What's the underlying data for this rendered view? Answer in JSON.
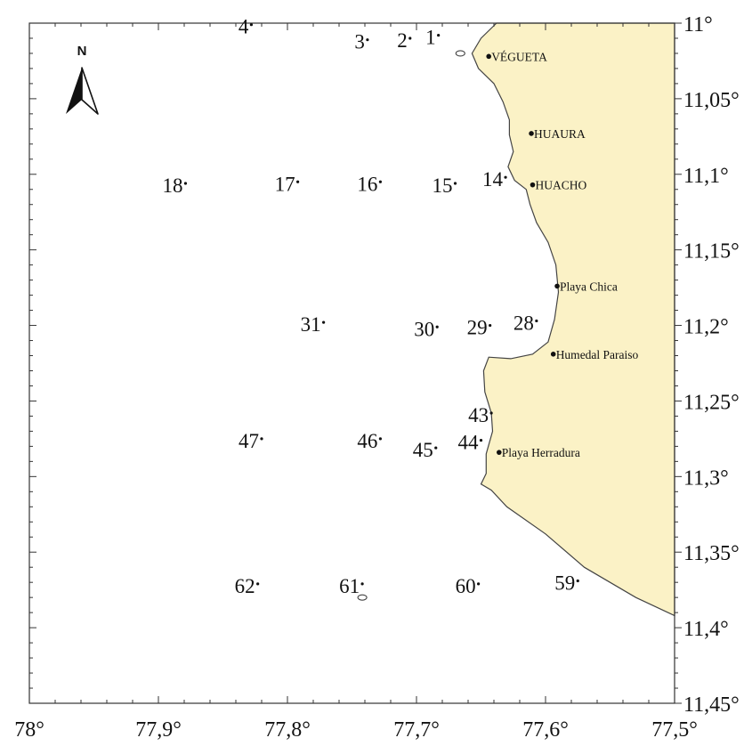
{
  "map": {
    "north_label": "N",
    "colors": {
      "land": "#fbf2c6",
      "coast": "#444444",
      "frame": "#333333",
      "text": "#111111"
    },
    "lon_ticks": [
      {
        "value": 78.0,
        "label": "78°"
      },
      {
        "value": 77.9,
        "label": "77,9°"
      },
      {
        "value": 77.8,
        "label": "77,8°"
      },
      {
        "value": 77.7,
        "label": "77,7°"
      },
      {
        "value": 77.6,
        "label": "77,6°"
      },
      {
        "value": 77.5,
        "label": "77,5°"
      }
    ],
    "lat_ticks": [
      {
        "value": 11.0,
        "label": "11°"
      },
      {
        "value": 11.05,
        "label": "11,05°"
      },
      {
        "value": 11.1,
        "label": "11,1°"
      },
      {
        "value": 11.15,
        "label": "11,15°"
      },
      {
        "value": 11.2,
        "label": "11,2°"
      },
      {
        "value": 11.25,
        "label": "11,25°"
      },
      {
        "value": 11.3,
        "label": "11,3°"
      },
      {
        "value": 11.35,
        "label": "11,35°"
      },
      {
        "value": 11.4,
        "label": "11,4°"
      },
      {
        "value": 11.45,
        "label": "11,45°"
      }
    ],
    "stations": [
      {
        "label": "4",
        "lon": 77.828,
        "lat": 11.001
      },
      {
        "label": "3",
        "lon": 77.738,
        "lat": 11.011
      },
      {
        "label": "2",
        "lon": 77.705,
        "lat": 11.01
      },
      {
        "label": "1",
        "lon": 77.683,
        "lat": 11.008
      },
      {
        "label": "18",
        "lon": 77.879,
        "lat": 11.106
      },
      {
        "label": "17",
        "lon": 77.792,
        "lat": 11.105
      },
      {
        "label": "16",
        "lon": 77.728,
        "lat": 11.105
      },
      {
        "label": "15",
        "lon": 77.67,
        "lat": 11.106
      },
      {
        "label": "14",
        "lon": 77.631,
        "lat": 11.102
      },
      {
        "label": "31",
        "lon": 77.772,
        "lat": 11.198
      },
      {
        "label": "30",
        "lon": 77.684,
        "lat": 11.201
      },
      {
        "label": "29",
        "lon": 77.643,
        "lat": 11.2
      },
      {
        "label": "28",
        "lon": 77.607,
        "lat": 11.197
      },
      {
        "label": "43",
        "lon": 77.642,
        "lat": 11.258
      },
      {
        "label": "47",
        "lon": 77.82,
        "lat": 11.275
      },
      {
        "label": "46",
        "lon": 77.728,
        "lat": 11.275
      },
      {
        "label": "45",
        "lon": 77.685,
        "lat": 11.281
      },
      {
        "label": "44",
        "lon": 77.65,
        "lat": 11.276
      },
      {
        "label": "62",
        "lon": 77.823,
        "lat": 11.371
      },
      {
        "label": "61",
        "lon": 77.742,
        "lat": 11.371
      },
      {
        "label": "60",
        "lon": 77.652,
        "lat": 11.371
      },
      {
        "label": "59",
        "lon": 77.575,
        "lat": 11.369
      }
    ],
    "towns": [
      {
        "name": "VÉGUETA",
        "lon": 77.644,
        "lat": 11.022
      },
      {
        "name": "HUAURA",
        "lon": 77.611,
        "lat": 11.073
      },
      {
        "name": "HUACHO",
        "lon": 77.61,
        "lat": 11.107
      },
      {
        "name": "Playa Chica",
        "lon": 77.591,
        "lat": 11.174
      },
      {
        "name": "Humedal Paraiso",
        "lon": 77.594,
        "lat": 11.219
      },
      {
        "name": "Playa Herradura",
        "lon": 77.636,
        "lat": 11.284
      }
    ],
    "coastline": [
      [
        77.638,
        11.0
      ],
      [
        77.65,
        11.01
      ],
      [
        77.657,
        11.02
      ],
      [
        77.652,
        11.03
      ],
      [
        77.64,
        11.04
      ],
      [
        77.633,
        11.052
      ],
      [
        77.628,
        11.064
      ],
      [
        77.628,
        11.074
      ],
      [
        77.625,
        11.085
      ],
      [
        77.629,
        11.095
      ],
      [
        77.624,
        11.104
      ],
      [
        77.615,
        11.11
      ],
      [
        77.612,
        11.12
      ],
      [
        77.607,
        11.132
      ],
      [
        77.598,
        11.145
      ],
      [
        77.592,
        11.16
      ],
      [
        77.59,
        11.178
      ],
      [
        77.593,
        11.196
      ],
      [
        77.598,
        11.211
      ],
      [
        77.61,
        11.219
      ],
      [
        77.627,
        11.222
      ],
      [
        77.644,
        11.221
      ],
      [
        77.648,
        11.23
      ],
      [
        77.647,
        11.244
      ],
      [
        77.642,
        11.258
      ],
      [
        77.641,
        11.27
      ],
      [
        77.646,
        11.285
      ],
      [
        77.646,
        11.298
      ],
      [
        77.65,
        11.305
      ],
      [
        77.642,
        11.309
      ],
      [
        77.63,
        11.32
      ],
      [
        77.6,
        11.338
      ],
      [
        77.57,
        11.36
      ],
      [
        77.53,
        11.38
      ],
      [
        77.5,
        11.392
      ]
    ],
    "islets": [
      {
        "lon": 77.666,
        "lat": 11.02
      },
      {
        "lon": 77.742,
        "lat": 11.38
      }
    ]
  }
}
